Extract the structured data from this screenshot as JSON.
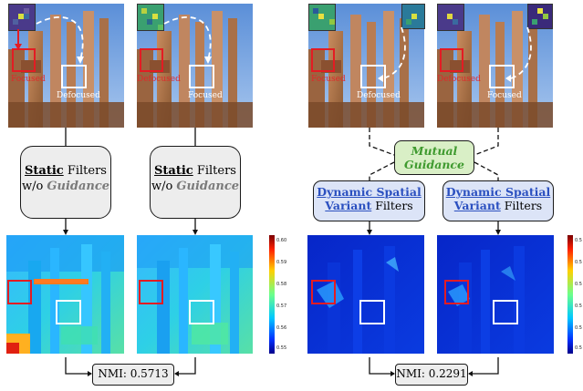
{
  "labels": {
    "focused": "Focused",
    "defocused": "Defocused"
  },
  "static_box": {
    "line1_bold": "Static",
    "line1_rest": " Filters",
    "line2_prefix": "w/o ",
    "line2_italic": "Guidance"
  },
  "mutual_box": {
    "line1": "Mutual",
    "line2": "Guidance"
  },
  "dynamic_box": {
    "line1": "Dynamic Spatial",
    "line2_bold": "Variant",
    "line2_rest": " Filters"
  },
  "nmi": {
    "left": "NMI: 0.5713",
    "right": "NMI: 0.2291"
  },
  "colorbars": {
    "left_ticks": [
      "0.60",
      "0.59",
      "0.58",
      "0.57",
      "0.56",
      "0.55"
    ],
    "right_ticks": [
      "0.5",
      "0.5",
      "0.5",
      "0.5",
      "0.5",
      "0.5"
    ]
  },
  "colors": {
    "red_box": "#e31c23",
    "mutual_green": "#3f9a2f",
    "dynamic_blue": "#2b50c0"
  }
}
